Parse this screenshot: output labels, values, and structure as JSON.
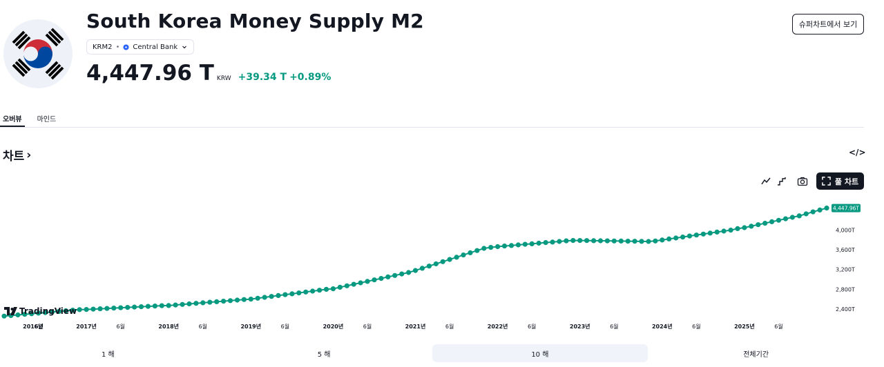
{
  "header": {
    "title": "South Korea Money Supply M2",
    "symbol": "KRM2",
    "source": "Central Bank",
    "price": "4,447.96 T",
    "currency": "KRW",
    "change_abs": "+39.34 T",
    "change_pct": "+0.89%",
    "supercharts_label": "슈퍼차트에서 보기"
  },
  "tabs": [
    {
      "label": "오버뷰",
      "active": true
    },
    {
      "label": "마인드",
      "active": false
    }
  ],
  "section": {
    "title": "차트",
    "arrow": "›",
    "embed_icon": "</>"
  },
  "toolbar": {
    "fullchart_label": "풀 차트",
    "line_icon": "line-chart-icon",
    "step_icon": "step-line-icon",
    "camera_icon": "camera-icon",
    "fullscreen_icon": "fullscreen-icon"
  },
  "watermark": "TradingView",
  "colors": {
    "accent": "#089981",
    "text": "#131722",
    "flag_red": "#cd2e3a",
    "flag_blue": "#0047a0"
  },
  "chart_data": {
    "type": "line",
    "title": "South Korea Money Supply M2",
    "unit": "KRW trillion",
    "x_start": "2016-01",
    "frequency": "monthly",
    "values": [
      2255,
      2267,
      2279,
      2291,
      2303,
      2315,
      2327,
      2339,
      2351,
      2363,
      2375,
      2387,
      2390,
      2397,
      2404,
      2411,
      2418,
      2425,
      2432,
      2439,
      2446,
      2453,
      2460,
      2467,
      2470,
      2481,
      2492,
      2503,
      2514,
      2525,
      2536,
      2547,
      2558,
      2569,
      2580,
      2591,
      2600,
      2618,
      2636,
      2654,
      2672,
      2690,
      2708,
      2726,
      2744,
      2762,
      2780,
      2798,
      2810,
      2840,
      2870,
      2900,
      2930,
      2960,
      2990,
      3020,
      3050,
      3080,
      3110,
      3140,
      3180,
      3225,
      3270,
      3315,
      3360,
      3405,
      3450,
      3495,
      3540,
      3585,
      3630,
      3650,
      3665,
      3677,
      3688,
      3700,
      3712,
      3723,
      3735,
      3747,
      3758,
      3770,
      3782,
      3790,
      3790,
      3788,
      3786,
      3784,
      3782,
      3780,
      3778,
      3776,
      3774,
      3772,
      3770,
      3780,
      3800,
      3820,
      3840,
      3860,
      3880,
      3900,
      3920,
      3940,
      3960,
      3980,
      4000,
      4030,
      4050,
      4080,
      4110,
      4140,
      4170,
      4200,
      4230,
      4260,
      4290,
      4330,
      4370,
      4408.62,
      4447.96
    ],
    "x_tick_labels": [
      "2016년",
      "6월",
      "2017년",
      "6월",
      "2018년",
      "6월",
      "2019년",
      "6월",
      "2020년",
      "6월",
      "2021년",
      "6월",
      "2022년",
      "6월",
      "2023년",
      "6월",
      "2024년",
      "6월",
      "2025년",
      "6월"
    ],
    "x_tick_months": [
      0,
      5,
      12,
      17,
      24,
      29,
      36,
      41,
      48,
      53,
      60,
      65,
      72,
      77,
      84,
      89,
      96,
      101,
      108,
      113
    ],
    "y_ticks": [
      2400,
      2800,
      3200,
      3600,
      4000
    ],
    "y_tick_labels": [
      "2,400T",
      "2,800T",
      "3,200T",
      "3,600T",
      "4,000T"
    ],
    "ylim": [
      2230,
      4540
    ],
    "last_value_label": "4,447.96T"
  },
  "ranges": [
    {
      "label": "1 해",
      "active": false
    },
    {
      "label": "5 해",
      "active": false
    },
    {
      "label": "10 해",
      "active": true
    },
    {
      "label": "전체기간",
      "active": false
    }
  ]
}
